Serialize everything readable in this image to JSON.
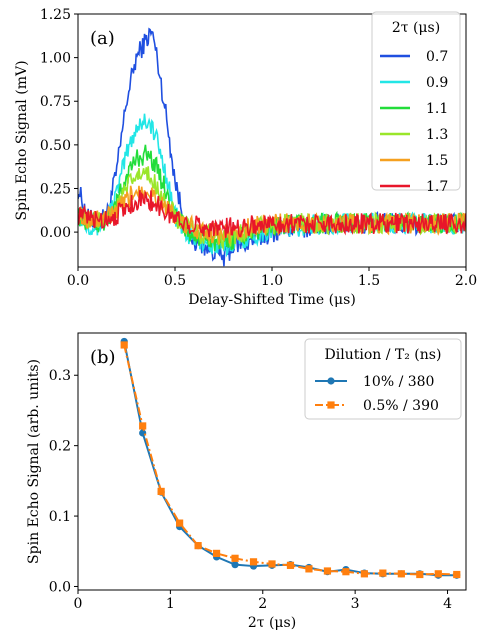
{
  "chart_data": [
    {
      "type": "line",
      "panel_label": "(a)",
      "xlabel": "Delay-Shifted Time (μs)",
      "ylabel": "Spin Echo Signal (mV)",
      "xlim": [
        0.0,
        2.0
      ],
      "ylim": [
        -0.2,
        1.25
      ],
      "xticks": [
        0.0,
        0.5,
        1.0,
        1.5,
        2.0
      ],
      "xtick_labels": [
        "0.0",
        "0.5",
        "1.0",
        "1.5",
        "2.0"
      ],
      "yticks": [
        0.0,
        0.25,
        0.5,
        0.75,
        1.0,
        1.25
      ],
      "ytick_labels": [
        "0.00",
        "0.25",
        "0.50",
        "0.75",
        "1.00",
        "1.25"
      ],
      "legend": {
        "title": "2τ (μs)",
        "placement": "top-right"
      },
      "grid": false,
      "x": [
        0.0,
        0.05,
        0.1,
        0.15,
        0.2,
        0.25,
        0.3,
        0.35,
        0.38,
        0.4,
        0.45,
        0.5,
        0.55,
        0.6,
        0.65,
        0.7,
        0.75,
        0.8,
        0.9,
        1.0,
        1.1,
        1.2,
        1.3,
        1.4,
        1.5,
        1.6,
        1.7,
        1.8,
        1.9,
        2.0
      ],
      "series": [
        {
          "name": "0.7",
          "color": "#1f4fe0",
          "values": [
            0.25,
            0.08,
            0.05,
            0.1,
            0.35,
            0.75,
            1.0,
            1.1,
            1.15,
            1.05,
            0.7,
            0.3,
            0.05,
            -0.05,
            -0.08,
            -0.1,
            -0.15,
            -0.08,
            -0.05,
            0.0,
            0.02,
            0.03,
            0.05,
            0.05,
            0.05,
            0.05,
            0.05,
            0.05,
            0.05,
            0.05
          ]
        },
        {
          "name": "0.9",
          "color": "#22e6e6",
          "values": [
            0.1,
            0.05,
            0.03,
            0.07,
            0.22,
            0.45,
            0.6,
            0.65,
            0.6,
            0.55,
            0.35,
            0.1,
            0.0,
            -0.05,
            -0.05,
            -0.08,
            -0.1,
            -0.05,
            -0.02,
            0.02,
            0.03,
            0.04,
            0.05,
            0.05,
            0.05,
            0.05,
            0.05,
            0.05,
            0.05,
            0.05
          ]
        },
        {
          "name": "1.1",
          "color": "#22dd3a",
          "values": [
            0.1,
            0.06,
            0.05,
            0.07,
            0.16,
            0.32,
            0.42,
            0.45,
            0.42,
            0.38,
            0.25,
            0.1,
            0.02,
            -0.03,
            -0.04,
            -0.05,
            -0.08,
            -0.04,
            0.0,
            0.03,
            0.04,
            0.05,
            0.05,
            0.05,
            0.05,
            0.05,
            0.05,
            0.05,
            0.05,
            0.05
          ]
        },
        {
          "name": "1.3",
          "color": "#9ae62a",
          "values": [
            0.1,
            0.07,
            0.06,
            0.08,
            0.14,
            0.25,
            0.32,
            0.33,
            0.3,
            0.28,
            0.18,
            0.09,
            0.04,
            0.0,
            -0.02,
            -0.03,
            -0.05,
            -0.02,
            0.02,
            0.04,
            0.05,
            0.05,
            0.05,
            0.05,
            0.05,
            0.05,
            0.05,
            0.05,
            0.05,
            0.05
          ]
        },
        {
          "name": "1.5",
          "color": "#f5a020",
          "values": [
            0.1,
            0.08,
            0.07,
            0.08,
            0.12,
            0.18,
            0.24,
            0.25,
            0.23,
            0.2,
            0.14,
            0.08,
            0.05,
            0.02,
            0.0,
            0.0,
            -0.02,
            0.0,
            0.03,
            0.05,
            0.05,
            0.05,
            0.05,
            0.05,
            0.05,
            0.05,
            0.05,
            0.05,
            0.05,
            0.05
          ]
        },
        {
          "name": "1.7",
          "color": "#e8162a",
          "values": [
            0.1,
            0.08,
            0.07,
            0.08,
            0.1,
            0.14,
            0.18,
            0.19,
            0.18,
            0.16,
            0.12,
            0.08,
            0.06,
            0.04,
            0.03,
            0.03,
            0.02,
            0.03,
            0.04,
            0.05,
            0.05,
            0.05,
            0.05,
            0.05,
            0.05,
            0.05,
            0.05,
            0.05,
            0.05,
            0.05
          ]
        }
      ]
    },
    {
      "type": "line",
      "panel_label": "(b)",
      "xlabel": "2τ (μs)",
      "ylabel": "Spin Echo Signal (arb. units)",
      "xlim": [
        0,
        4.2
      ],
      "ylim": [
        -0.005,
        0.36
      ],
      "xticks": [
        0,
        1,
        2,
        3,
        4
      ],
      "xtick_labels": [
        "0",
        "1",
        "2",
        "3",
        "4"
      ],
      "yticks": [
        0.0,
        0.1,
        0.2,
        0.3
      ],
      "ytick_labels": [
        "0.0",
        "0.1",
        "0.2",
        "0.3"
      ],
      "legend": {
        "title": "Dilution / T₂ (ns)",
        "placement": "top-right"
      },
      "grid": false,
      "series": [
        {
          "name": "10% / 380",
          "color": "#1f77b4",
          "marker": "circle",
          "linestyle": "solid",
          "x": [
            0.5,
            0.7,
            0.9,
            1.1,
            1.3,
            1.5,
            1.7,
            1.9,
            2.1,
            2.3,
            2.5,
            2.7,
            2.9,
            3.1,
            3.3,
            3.5,
            3.7,
            3.9,
            4.1
          ],
          "values": [
            0.348,
            0.218,
            0.134,
            0.085,
            0.058,
            0.042,
            0.031,
            0.029,
            0.03,
            0.031,
            0.027,
            0.021,
            0.024,
            0.019,
            0.018,
            0.018,
            0.018,
            0.016,
            0.016
          ]
        },
        {
          "name": "0.5% / 390",
          "color": "#ff7f0e",
          "marker": "square",
          "linestyle": "dashdot",
          "x": [
            0.5,
            0.7,
            0.9,
            1.1,
            1.3,
            1.5,
            1.7,
            1.9,
            2.1,
            2.3,
            2.5,
            2.7,
            2.9,
            3.1,
            3.3,
            3.5,
            3.7,
            3.9,
            4.1
          ],
          "values": [
            0.343,
            0.228,
            0.135,
            0.09,
            0.058,
            0.047,
            0.04,
            0.035,
            0.032,
            0.03,
            0.025,
            0.022,
            0.021,
            0.018,
            0.019,
            0.018,
            0.017,
            0.018,
            0.017
          ]
        }
      ]
    }
  ]
}
